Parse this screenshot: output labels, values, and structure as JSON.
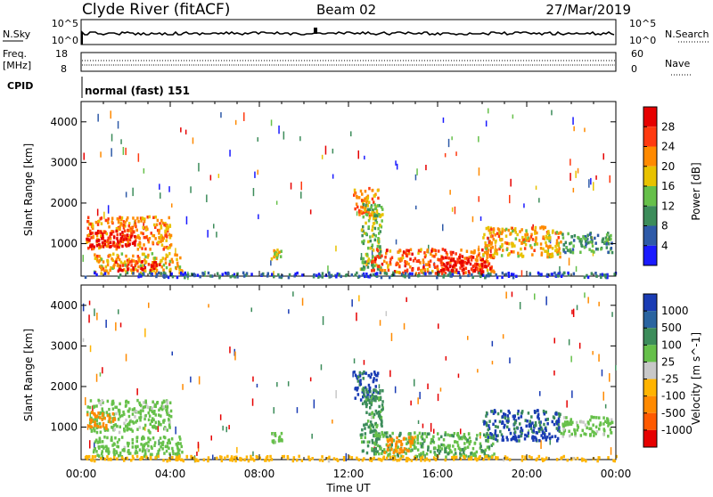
{
  "header": {
    "station": "Clyde River (fitACF)",
    "beam": "Beam 02",
    "date": "27/Mar/2019"
  },
  "status_panels": {
    "nsky_label": "N.Sky",
    "nsky_ticks": [
      "10^5",
      "10^0"
    ],
    "nsearch_label": "N.Search",
    "freq_label": "Freq.",
    "freq_unit": "[MHz]",
    "freq_ticks": [
      "18",
      "8"
    ],
    "nave_label": "Nave",
    "nave_ticks": [
      "60",
      "0"
    ],
    "cpid_label": "CPID",
    "cpid_text": "normal (fast) 151"
  },
  "colors": {
    "power": [
      "#1a1aff",
      "#2e5aa8",
      "#3c8c5a",
      "#66c04a",
      "#e8c200",
      "#ff8a00",
      "#ff3a10",
      "#e60000"
    ],
    "velocity": [
      "#1a3cb4",
      "#2a64a0",
      "#3c8c5a",
      "#66c04a",
      "#c8c8c8",
      "#ffb400",
      "#ff8a00",
      "#ff5a00",
      "#e60000"
    ]
  },
  "chart_data": [
    {
      "type": "heatmap",
      "name": "power",
      "ylabel": "Slant Range [km]",
      "yticks": [
        "1000",
        "2000",
        "3000",
        "4000"
      ],
      "ylim": [
        200,
        4500
      ],
      "xlim": [
        0,
        24
      ],
      "colorbar_label": "Power [dB]",
      "colorbar_ticks": [
        "4",
        "8",
        "12",
        "16",
        "20",
        "24",
        "28"
      ],
      "clim": [
        0,
        32
      ],
      "regions": [
        {
          "t": [
            0.2,
            4.0
          ],
          "r": [
            900,
            1700
          ],
          "v": 22
        },
        {
          "t": [
            0.2,
            2.5
          ],
          "r": [
            950,
            1350
          ],
          "v": 30
        },
        {
          "t": [
            0.5,
            4.5
          ],
          "r": [
            300,
            800
          ],
          "v": 20
        },
        {
          "t": [
            1.5,
            3.5
          ],
          "r": [
            350,
            600
          ],
          "v": 28
        },
        {
          "t": [
            8.5,
            9.0
          ],
          "r": [
            650,
            900
          ],
          "v": 18
        },
        {
          "t": [
            12.2,
            13.3
          ],
          "r": [
            1700,
            2400
          ],
          "v": 22
        },
        {
          "t": [
            12.5,
            13.5
          ],
          "r": [
            400,
            2000
          ],
          "v": 14
        },
        {
          "t": [
            13.0,
            18.5
          ],
          "r": [
            300,
            900
          ],
          "v": 24
        },
        {
          "t": [
            16.0,
            18.5
          ],
          "r": [
            300,
            700
          ],
          "v": 30
        },
        {
          "t": [
            18.0,
            21.5
          ],
          "r": [
            700,
            1450
          ],
          "v": 20
        },
        {
          "t": [
            21.5,
            23.8
          ],
          "r": [
            800,
            1300
          ],
          "v": 10
        },
        {
          "t": [
            0.0,
            24.0
          ],
          "r": [
            200,
            320
          ],
          "v": 6
        }
      ]
    },
    {
      "type": "heatmap",
      "name": "velocity",
      "ylabel": "Slant Range [km]",
      "yticks": [
        "1000",
        "2000",
        "3000",
        "4000"
      ],
      "ylim": [
        200,
        4500
      ],
      "xlim": [
        0,
        24
      ],
      "xlabel": "Time UT",
      "xticks": [
        "00:00",
        "04:00",
        "08:00",
        "12:00",
        "16:00",
        "20:00",
        "00:00"
      ],
      "colorbar_label": "Velocity [m s^-1]",
      "colorbar_ticks": [
        "1000",
        "500",
        "100",
        "25",
        "-25",
        "-100",
        "-500",
        "-1000"
      ],
      "regions": [
        {
          "t": [
            0.2,
            4.0
          ],
          "r": [
            900,
            1700
          ],
          "v": 50
        },
        {
          "t": [
            0.2,
            1.5
          ],
          "r": [
            1000,
            1400
          ],
          "v": -300
        },
        {
          "t": [
            0.5,
            4.5
          ],
          "r": [
            300,
            800
          ],
          "v": 60
        },
        {
          "t": [
            8.5,
            9.0
          ],
          "r": [
            650,
            900
          ],
          "v": 60
        },
        {
          "t": [
            12.2,
            13.3
          ],
          "r": [
            1700,
            2400
          ],
          "v": 700
        },
        {
          "t": [
            12.5,
            13.5
          ],
          "r": [
            400,
            2000
          ],
          "v": 150
        },
        {
          "t": [
            13.0,
            18.5
          ],
          "r": [
            300,
            900
          ],
          "v": 80
        },
        {
          "t": [
            13.5,
            15.0
          ],
          "r": [
            400,
            800
          ],
          "v": -200
        },
        {
          "t": [
            18.0,
            21.5
          ],
          "r": [
            700,
            1450
          ],
          "v": 600
        },
        {
          "t": [
            21.5,
            23.8
          ],
          "r": [
            800,
            1300
          ],
          "v": 40
        },
        {
          "t": [
            0.0,
            24.0
          ],
          "r": [
            200,
            320
          ],
          "v": -60
        }
      ]
    }
  ]
}
